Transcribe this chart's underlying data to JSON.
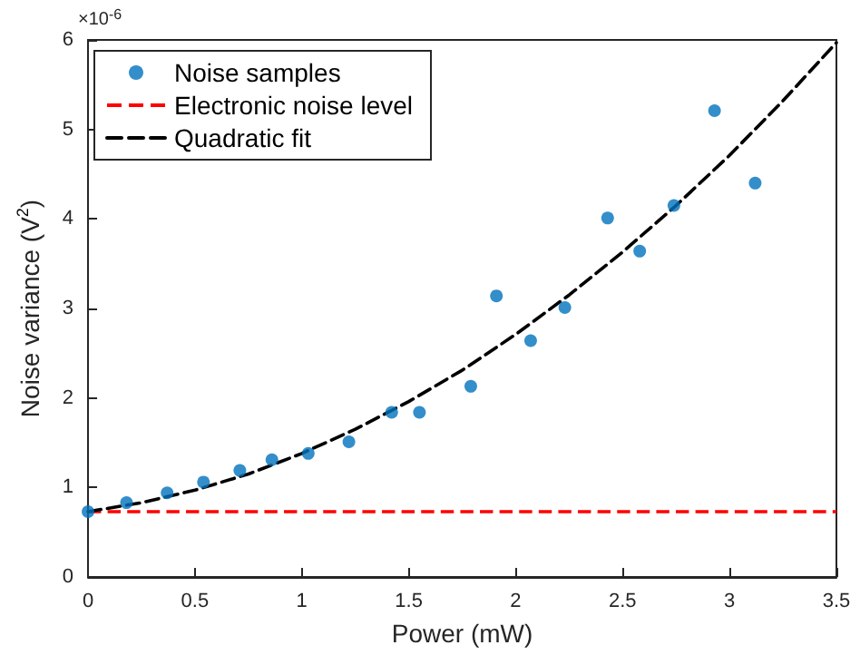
{
  "chart_data": {
    "type": "scatter",
    "xlabel": "Power (mW)",
    "ylabel": "Noise variance (V$^{2}$)",
    "annotations": [
      "×10$^{-6}$"
    ],
    "series": [
      {
        "name": "Noise samples",
        "color": "#0072bd",
        "marker": "circle",
        "x": [
          0,
          0.18,
          0.37,
          0.54,
          0.71,
          0.86,
          1.03,
          1.22,
          1.42,
          1.55,
          1.79,
          1.91,
          2.07,
          2.23,
          2.43,
          2.58,
          2.74,
          2.93,
          3.12
        ],
        "values": [
          0.73,
          0.83,
          0.94,
          1.06,
          1.19,
          1.31,
          1.38,
          1.51,
          1.84,
          1.84,
          2.13,
          3.14,
          2.64,
          3.01,
          4.01,
          3.64,
          4.15,
          5.21,
          4.4
        ]
      },
      {
        "name": "Quadratic fit",
        "type": "line",
        "color": "#000000",
        "marker": "none",
        "line_style": "dashed",
        "x": [
          0,
          0.25,
          0.5,
          0.75,
          1,
          1.25,
          1.5,
          1.75,
          2,
          2.25,
          2.5,
          2.75,
          3,
          3.25,
          3.5
        ],
        "values": [
          0.73,
          0.83,
          0.97,
          1.15,
          1.38,
          1.65,
          1.96,
          2.31,
          2.71,
          3.15,
          3.63,
          4.15,
          4.71,
          5.32,
          5.97
        ]
      }
    ],
    "ref_lines": [
      {
        "axis": "y",
        "value": 0.73,
        "label": "Electronic noise level",
        "color": "#ff0000",
        "line_style": "dashed"
      }
    ],
    "xlim": [
      0,
      3.5
    ],
    "xticks": [
      0,
      0.5,
      1,
      1.5,
      2,
      2.5,
      3,
      3.5
    ],
    "ylim": [
      0,
      6
    ],
    "yticks": [
      0,
      1,
      2,
      3,
      4,
      5,
      6
    ],
    "grid": false,
    "legend": "top left"
  }
}
